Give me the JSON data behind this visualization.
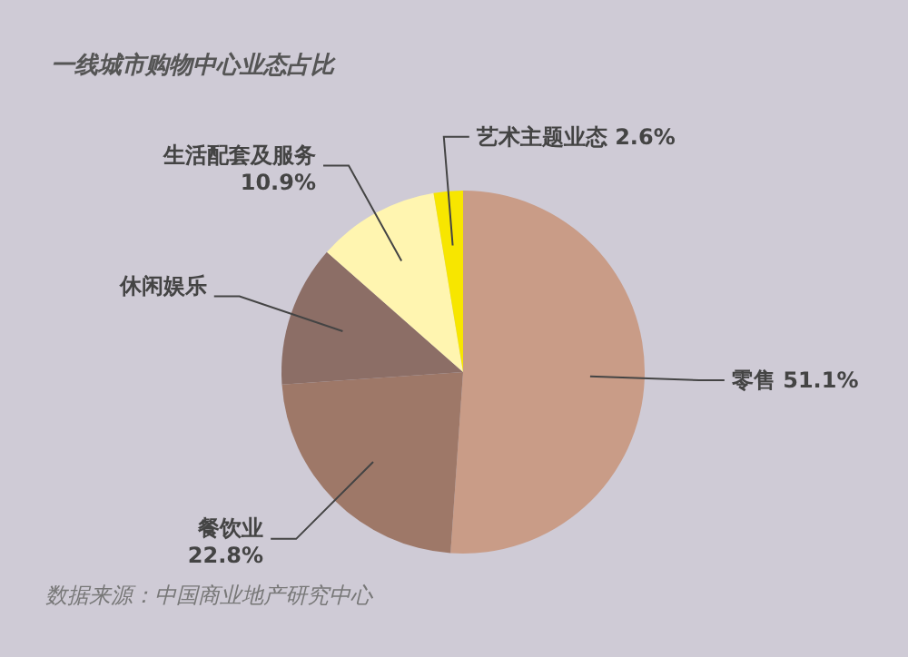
{
  "chart_data": {
    "type": "pie",
    "title": "一线城市购物中心业态占比",
    "categories": [
      "零售",
      "餐饮业",
      "休闲娱乐",
      "生活配套及服务",
      "艺术主题业态"
    ],
    "values": [
      51.1,
      22.8,
      12.6,
      10.9,
      2.6
    ],
    "value_labels": [
      "51.1%",
      "22.8%",
      null,
      "10.9%",
      "2.6%"
    ],
    "colors": [
      "#c99c87",
      "#9e7868",
      "#8c6e66",
      "#fff5b0",
      "#f7e600"
    ],
    "annotations": [
      "数据来源：中国商业地产研究中心"
    ]
  }
}
